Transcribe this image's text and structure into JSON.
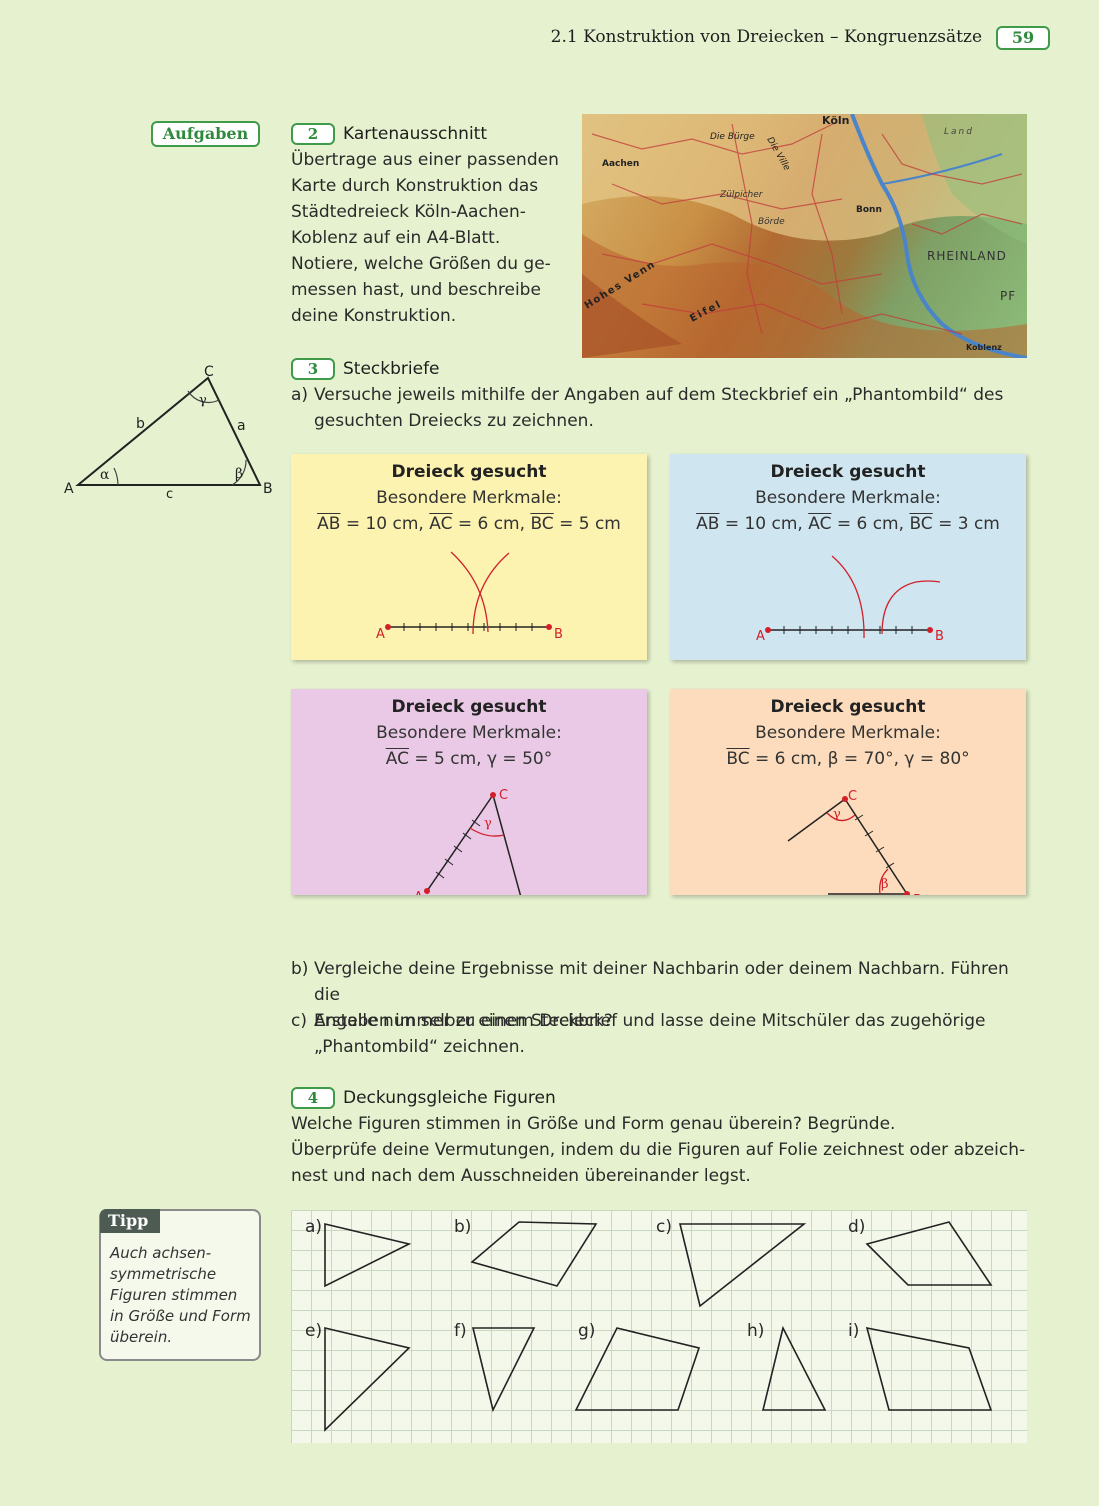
{
  "header": {
    "title": "2.1 Konstruktion von Dreiecken – Kongruenzsätze",
    "page_number": "59"
  },
  "aufgaben_label": "Aufgaben",
  "task2": {
    "number": "2",
    "title": "Kartenausschnitt",
    "lines": [
      "Übertrage aus einer passenden",
      "Karte durch Konstruktion das",
      "Städtedreieck Köln-Aachen-",
      "Koblenz auf ein A4-Blatt.",
      "Notiere, welche Größen du ge-",
      "messen hast, und beschreibe",
      "deine Konstruktion."
    ],
    "map_labels": {
      "koeln": "Köln",
      "rheinland": "RHEINLAND",
      "hohes_venn": "Hohes Venn",
      "eifel": "Eifel",
      "die_ville": "Die Ville",
      "die_buerge": "Die Bürge",
      "aachen": "Aachen",
      "bonn": "Bonn",
      "koblenz": "Koblenz",
      "land": "Land",
      "pf": "PF",
      "zuelpicher": "Zülpicher",
      "boerde": "Börde"
    }
  },
  "triangle_ref": {
    "A": "A",
    "B": "B",
    "C": "C",
    "a": "a",
    "b": "b",
    "c": "c",
    "alpha": "α",
    "beta": "β",
    "gamma": "γ"
  },
  "task3": {
    "number": "3",
    "title": "Steckbriefe",
    "a_label": "a)",
    "a_lines": [
      "Versuche jeweils mithilfe der Angaben auf dem Steckbrief ein „Phantombild“ des",
      "gesuchten Dreiecks zu zeichnen."
    ],
    "cards": [
      {
        "title": "Dreieck gesucht",
        "subtitle": "Besondere Merkmale:",
        "seg1": "AB",
        "val1": " = 10 cm, ",
        "seg2": "AC",
        "val2": " = 6 cm, ",
        "seg3": "BC",
        "val3": " = 5 cm",
        "pA": "A",
        "pB": "B",
        "bg": "#fcf3b0"
      },
      {
        "title": "Dreieck gesucht",
        "subtitle": "Besondere Merkmale:",
        "seg1": "AB",
        "val1": " = 10 cm, ",
        "seg2": "AC",
        "val2": " = 6 cm, ",
        "seg3": "BC",
        "val3": " = 3 cm",
        "pA": "A",
        "pB": "B",
        "bg": "#cfe6f0"
      },
      {
        "title": "Dreieck gesucht",
        "subtitle": "Besondere Merkmale:",
        "seg1": "AC",
        "val1": " = 5 cm, γ = 50°",
        "pA": "A",
        "pC": "C",
        "angle": "γ",
        "bg": "#e9c9e6"
      },
      {
        "title": "Dreieck gesucht",
        "subtitle": "Besondere Merkmale:",
        "seg1": "BC",
        "val1": " = 6 cm, β = 70°, γ = 80°",
        "pB": "B",
        "pC": "C",
        "angle_g": "γ",
        "angle_b": "β",
        "bg": "#fcdcbc"
      }
    ],
    "b_label": "b)",
    "b_lines": [
      "Vergleiche deine Ergebnisse mit deiner Nachbarin oder deinem Nachbarn. Führen die",
      "Angaben immer zu einem Dreieck?"
    ],
    "c_label": "c)",
    "c_lines": [
      "Erstelle nun selber einen Steckbrief und lasse deine Mitschüler das zugehörige",
      "„Phantombild“ zeichnen."
    ]
  },
  "task4": {
    "number": "4",
    "title": "Deckungsgleiche Figuren",
    "lines": [
      "Welche Figuren stimmen in Größe und Form genau überein? Begründe.",
      "Überprüfe deine Vermutungen, indem du die Figuren auf Folie zeichnest oder abzeich-",
      "nest und nach dem Ausschneiden übereinander legst."
    ],
    "figure_labels": [
      "a)",
      "b)",
      "c)",
      "d)",
      "e)",
      "f)",
      "g)",
      "h)",
      "i)"
    ]
  },
  "tipp": {
    "label": "Tipp",
    "lines": [
      "Auch achsen-",
      "symmetrische",
      "Figuren stimmen",
      "in Größe und Form",
      "überein."
    ]
  },
  "colors": {
    "page_bg": "#e6f2cf",
    "accent_green": "#3f9a4a",
    "construction_red": "#d21f2a"
  }
}
